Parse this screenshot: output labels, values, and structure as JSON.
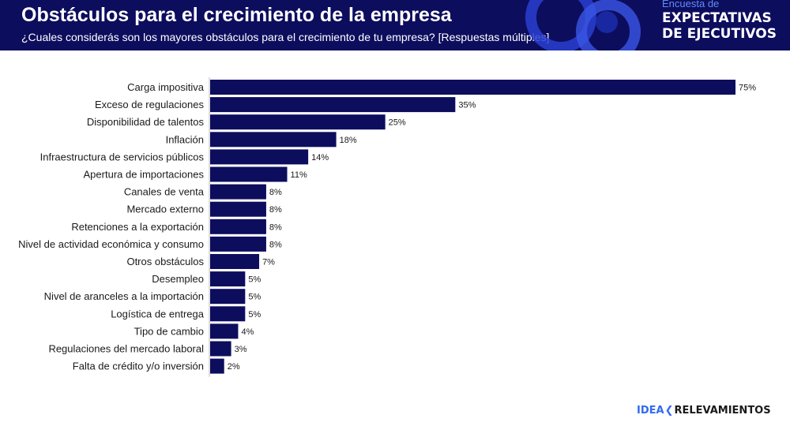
{
  "header": {
    "title": "Obstáculos para el crecimiento de la empresa",
    "subtitle": "¿Cuales considerás son los mayores obstáculos para el crecimiento de tu empresa? [Respuestas múltiples]",
    "brand_small": "Encuesta de",
    "brand_line1": "EXPECTATIVAS",
    "brand_line2": "DE EJECUTIVOS"
  },
  "footer": {
    "logo_part1": "IDEA",
    "logo_chevron": "❮",
    "logo_part2": "RELEVAMIENTOS"
  },
  "colors": {
    "header_bg": "#0d0d5e",
    "bar": "#0d0d5e",
    "brand_accent": "#2f6bf0"
  },
  "chart_data": {
    "type": "bar",
    "orientation": "horizontal",
    "categories": [
      "Carga impositiva",
      "Exceso de regulaciones",
      "Disponibilidad de talentos",
      "Inflación",
      "Infraestructura de servicios públicos",
      "Apertura de importaciones",
      "Canales de venta",
      "Mercado externo",
      "Retenciones a la exportación",
      "Nivel de actividad económica y consumo",
      "Otros obstáculos",
      "Desempleo",
      "Nivel de aranceles a la importación",
      "Logística de entrega",
      "Tipo de cambio",
      "Regulaciones del mercado laboral",
      "Falta de crédito y/o inversión"
    ],
    "values": [
      75,
      35,
      25,
      18,
      14,
      11,
      8,
      8,
      8,
      8,
      7,
      5,
      5,
      5,
      4,
      3,
      2
    ],
    "value_labels": [
      "75%",
      "35%",
      "25%",
      "18%",
      "14%",
      "11%",
      "8%",
      "8%",
      "8%",
      "8%",
      "7%",
      "5%",
      "5%",
      "5%",
      "4%",
      "3%",
      "2%"
    ],
    "unit": "%",
    "xlim": [
      0,
      75
    ],
    "grid": false,
    "legend": "none"
  }
}
